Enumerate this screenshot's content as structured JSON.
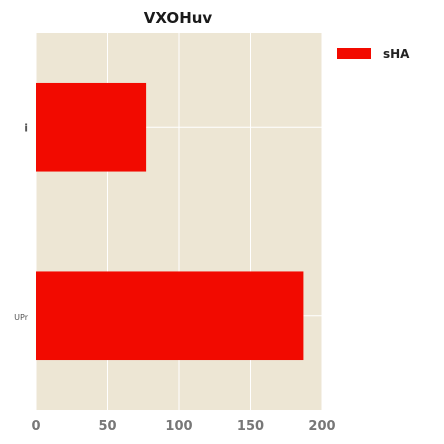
{
  "chart_data": {
    "type": "bar",
    "orientation": "horizontal",
    "title": "VXOHuv",
    "xlabel": "",
    "ylabel": "",
    "categories": [
      "i",
      "UPr"
    ],
    "series": [
      {
        "name": "sHA",
        "values": [
          77,
          187
        ]
      }
    ],
    "xlim": [
      0,
      200
    ],
    "x_ticks": [
      0,
      50,
      100,
      150,
      200
    ],
    "grid": true,
    "legend_position": "top-right, outside plot area",
    "colors": {
      "bar": "#f20a00",
      "plot_background": "#ede6d4",
      "grid": "#ffffff"
    }
  }
}
